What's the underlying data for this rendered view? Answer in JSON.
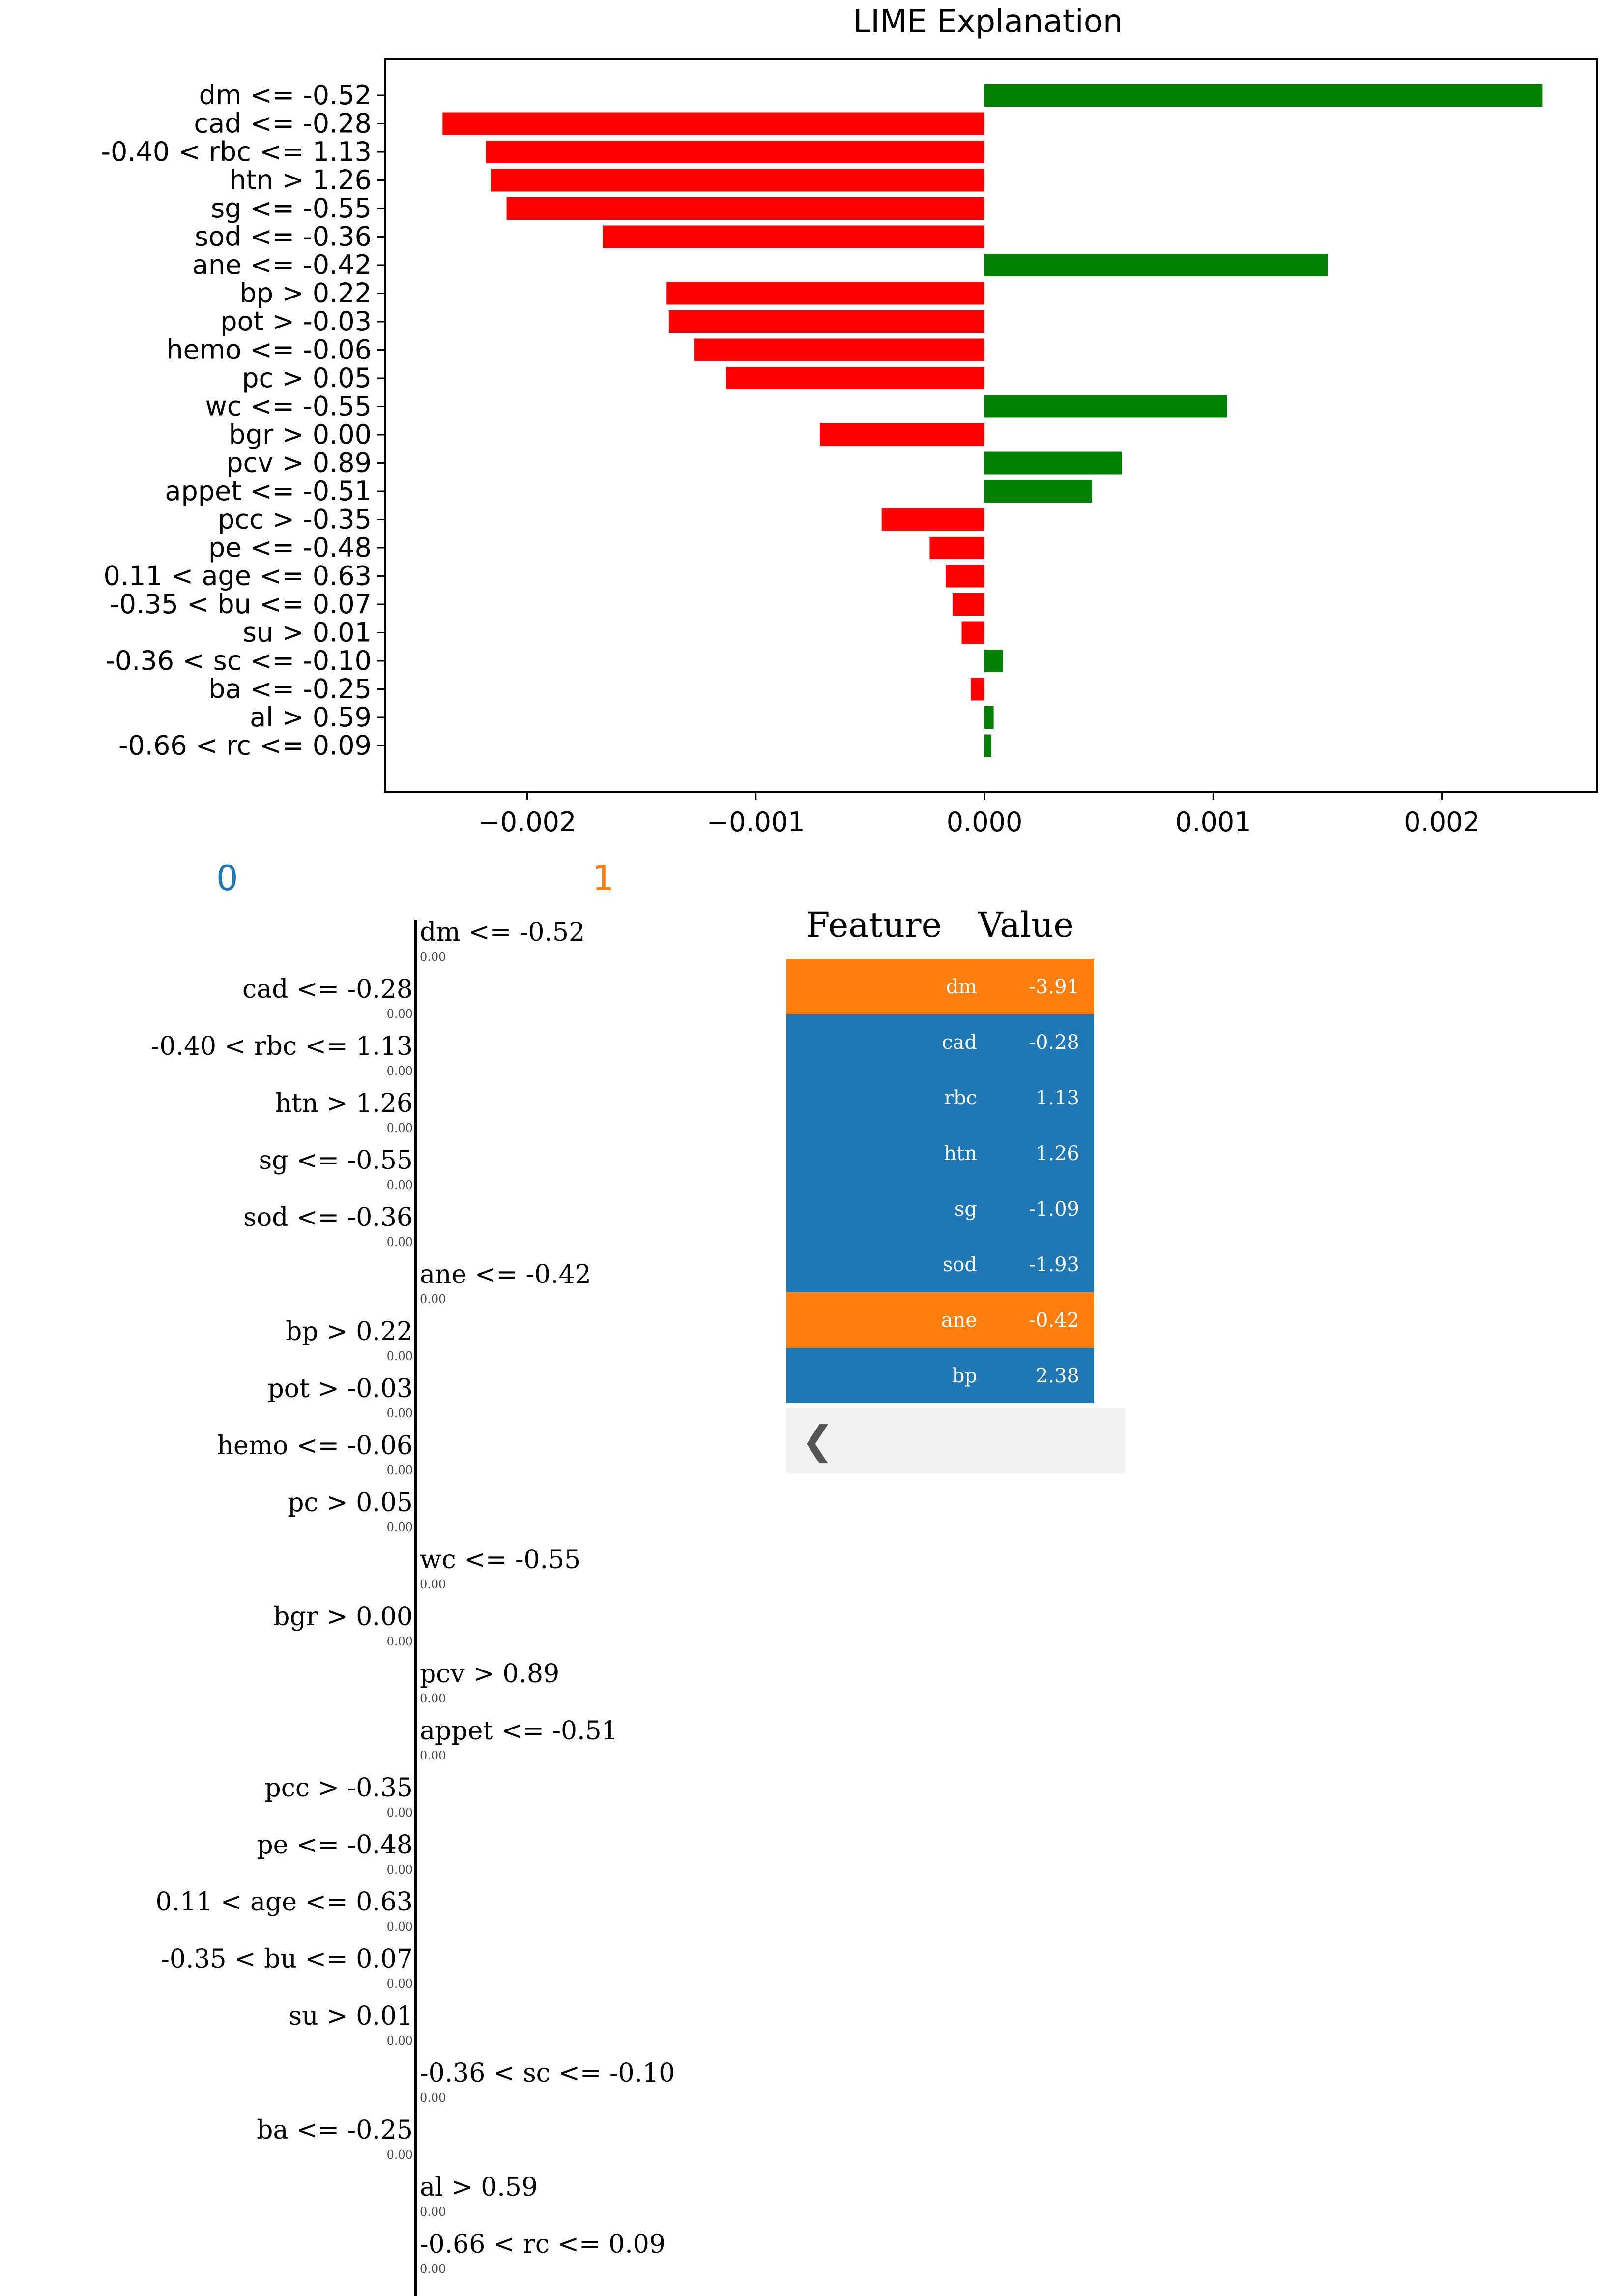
{
  "chart_data": {
    "type": "bar",
    "orientation": "horizontal",
    "title": "LIME Explanation",
    "xlabel": "",
    "ylabel": "",
    "xlim": [
      -0.00262,
      0.00268
    ],
    "xticks": [
      -0.002,
      -0.001,
      0.0,
      0.001,
      0.002
    ],
    "xtick_labels": [
      "−0.002",
      "−0.001",
      "0.000",
      "0.001",
      "0.002"
    ],
    "categories": [
      "dm <= -0.52",
      "cad <= -0.28",
      "-0.40 < rbc <= 1.13",
      "htn > 1.26",
      "sg <= -0.55",
      "sod <= -0.36",
      "ane <= -0.42",
      "bp > 0.22",
      "pot > -0.03",
      "hemo <= -0.06",
      "pc > 0.05",
      "wc <= -0.55",
      "bgr > 0.00",
      "pcv > 0.89",
      "appet <= -0.51",
      "pcc > -0.35",
      "pe <= -0.48",
      "0.11 < age <= 0.63",
      "-0.35 < bu <= 0.07",
      "su > 0.01",
      "-0.36 < sc <= -0.10",
      "ba <= -0.25",
      "al > 0.59",
      "-0.66 < rc <= 0.09"
    ],
    "values": [
      0.00244,
      -0.00237,
      -0.00218,
      -0.00216,
      -0.00209,
      -0.00167,
      0.0015,
      -0.00139,
      -0.00138,
      -0.00127,
      -0.00113,
      0.00106,
      -0.00072,
      0.0006,
      0.00047,
      -0.00045,
      -0.00024,
      -0.00017,
      -0.00014,
      -0.0001,
      8e-05,
      -6e-05,
      4e-05,
      3e-05
    ],
    "positive_color": "#008000",
    "negative_color": "#ff0000",
    "grid": false
  },
  "explanation_panel": {
    "class_labels": [
      "0",
      "1"
    ],
    "class_colors": [
      "#1f77b4",
      "#ff7f0e"
    ],
    "rows": [
      {
        "label": "dm <= -0.52",
        "weight": "0.00",
        "side": "1"
      },
      {
        "label": "cad <= -0.28",
        "weight": "0.00",
        "side": "0"
      },
      {
        "label": "-0.40 < rbc <= 1.13",
        "weight": "0.00",
        "side": "0"
      },
      {
        "label": "htn > 1.26",
        "weight": "0.00",
        "side": "0"
      },
      {
        "label": "sg <= -0.55",
        "weight": "0.00",
        "side": "0"
      },
      {
        "label": "sod <= -0.36",
        "weight": "0.00",
        "side": "0"
      },
      {
        "label": "ane <= -0.42",
        "weight": "0.00",
        "side": "1"
      },
      {
        "label": "bp > 0.22",
        "weight": "0.00",
        "side": "0"
      },
      {
        "label": "pot > -0.03",
        "weight": "0.00",
        "side": "0"
      },
      {
        "label": "hemo <= -0.06",
        "weight": "0.00",
        "side": "0"
      },
      {
        "label": "pc > 0.05",
        "weight": "0.00",
        "side": "0"
      },
      {
        "label": "wc <= -0.55",
        "weight": "0.00",
        "side": "1"
      },
      {
        "label": "bgr > 0.00",
        "weight": "0.00",
        "side": "0"
      },
      {
        "label": "pcv > 0.89",
        "weight": "0.00",
        "side": "1"
      },
      {
        "label": "appet <= -0.51",
        "weight": "0.00",
        "side": "1"
      },
      {
        "label": "pcc > -0.35",
        "weight": "0.00",
        "side": "0"
      },
      {
        "label": "pe <= -0.48",
        "weight": "0.00",
        "side": "0"
      },
      {
        "label": "0.11 < age <= 0.63",
        "weight": "0.00",
        "side": "0"
      },
      {
        "label": "-0.35 < bu <= 0.07",
        "weight": "0.00",
        "side": "0"
      },
      {
        "label": "su > 0.01",
        "weight": "0.00",
        "side": "0"
      },
      {
        "label": "-0.36 < sc <= -0.10",
        "weight": "0.00",
        "side": "1"
      },
      {
        "label": "ba <= -0.25",
        "weight": "0.00",
        "side": "0"
      },
      {
        "label": "al > 0.59",
        "weight": "0.00",
        "side": "1"
      },
      {
        "label": "-0.66 < rc <= 0.09",
        "weight": "0.00",
        "side": "1"
      }
    ]
  },
  "feature_table": {
    "headers": {
      "feature": "Feature",
      "value": "Value"
    },
    "rows": [
      {
        "feature": "dm",
        "value": "-3.91",
        "class": "1"
      },
      {
        "feature": "cad",
        "value": "-0.28",
        "class": "0"
      },
      {
        "feature": "rbc",
        "value": "1.13",
        "class": "0"
      },
      {
        "feature": "htn",
        "value": "1.26",
        "class": "0"
      },
      {
        "feature": "sg",
        "value": "-1.09",
        "class": "0"
      },
      {
        "feature": "sod",
        "value": "-1.93",
        "class": "0"
      },
      {
        "feature": "ane",
        "value": "-0.42",
        "class": "1"
      },
      {
        "feature": "bp",
        "value": "2.38",
        "class": "0"
      }
    ],
    "class_colors": {
      "0": "#1f77b4",
      "1": "#ff7f0e"
    },
    "scroll_icon": "chevron-left-icon"
  }
}
